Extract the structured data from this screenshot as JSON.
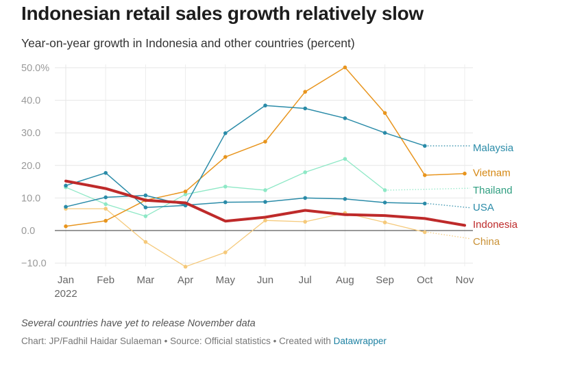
{
  "header": {
    "title": "Indonesian retail sales growth relatively slow",
    "subtitle": "Year-on-year growth in Indonesia and other countries (percent)"
  },
  "footer": {
    "note": "Several countries have yet to release November data",
    "credit_prefix": "Chart: JP/Fadhil Haidar Sulaeman • Source: Official statistics • Created with ",
    "credit_link": "Datawrapper"
  },
  "chart_data": {
    "type": "line",
    "title": "Indonesian retail sales growth relatively slow",
    "subtitle": "Year-on-year growth in Indonesia and other countries (percent)",
    "categories": [
      "Jan",
      "Feb",
      "Mar",
      "Apr",
      "May",
      "Jun",
      "Jul",
      "Aug",
      "Sep",
      "Oct",
      "Nov"
    ],
    "year_label": "2022",
    "yticks": [
      {
        "value": 50,
        "label": "50.0%"
      },
      {
        "value": 40,
        "label": "40.0"
      },
      {
        "value": 30,
        "label": "30.0"
      },
      {
        "value": 20,
        "label": "20.0"
      },
      {
        "value": 10,
        "label": "10.0"
      },
      {
        "value": 0,
        "label": "0.0"
      },
      {
        "value": -10,
        "label": "−10.0"
      }
    ],
    "ylim": [
      -11,
      51
    ],
    "grid": true,
    "series": [
      {
        "name": "China",
        "color": "#f5c97a",
        "width": 1.3,
        "values": [
          6.7,
          6.7,
          -3.5,
          -11.1,
          -6.7,
          3.1,
          2.7,
          5.4,
          2.5,
          -0.5,
          null
        ],
        "label_value": -2.5
      },
      {
        "name": "Thailand",
        "color": "#8ee8c6",
        "width": 1.3,
        "values": [
          13.3,
          8.1,
          4.4,
          11.1,
          13.5,
          12.4,
          17.9,
          22.0,
          12.4,
          null,
          null
        ],
        "label_value": 13.0
      },
      {
        "name": "Vietnam",
        "color": "#e8951e",
        "width": 1.5,
        "values": [
          1.3,
          3.0,
          9.3,
          12.0,
          22.6,
          27.3,
          42.6,
          50.1,
          36.1,
          17.0,
          17.5
        ]
      },
      {
        "name": "Malaysia",
        "color": "#2a8ba8",
        "width": 1.5,
        "values": [
          13.8,
          17.7,
          7.1,
          7.7,
          29.9,
          38.4,
          37.5,
          34.5,
          30.0,
          26.0,
          null
        ],
        "label_value": 26.0
      },
      {
        "name": "USA",
        "color": "#2a8ba8",
        "width": 1.5,
        "values": [
          7.3,
          10.2,
          10.8,
          7.8,
          8.7,
          8.8,
          10.0,
          9.7,
          8.6,
          8.3,
          null
        ],
        "label_value": 7.0
      },
      {
        "name": "Indonesia",
        "color": "#be2a2a",
        "width": 4,
        "values": [
          15.2,
          12.9,
          9.3,
          8.5,
          2.9,
          4.1,
          6.2,
          4.9,
          4.6,
          3.7,
          1.6
        ]
      }
    ],
    "labels": [
      {
        "name": "Malaysia",
        "text": "Malaysia",
        "color": "#2a8ba8",
        "value": 25.4
      },
      {
        "name": "Vietnam",
        "text": "Vietnam",
        "color": "#d58712",
        "value": 17.7
      },
      {
        "name": "Thailand",
        "text": "Thailand",
        "color": "#2f9e80",
        "value": 12.4
      },
      {
        "name": "USA",
        "text": "USA",
        "color": "#2a8ba8",
        "value": 7.1
      },
      {
        "name": "Indonesia",
        "text": "Indonesia",
        "color": "#be2a2a",
        "value": 1.9
      },
      {
        "name": "China",
        "text": "China",
        "color": "#c99135",
        "value": -3.4
      }
    ]
  }
}
